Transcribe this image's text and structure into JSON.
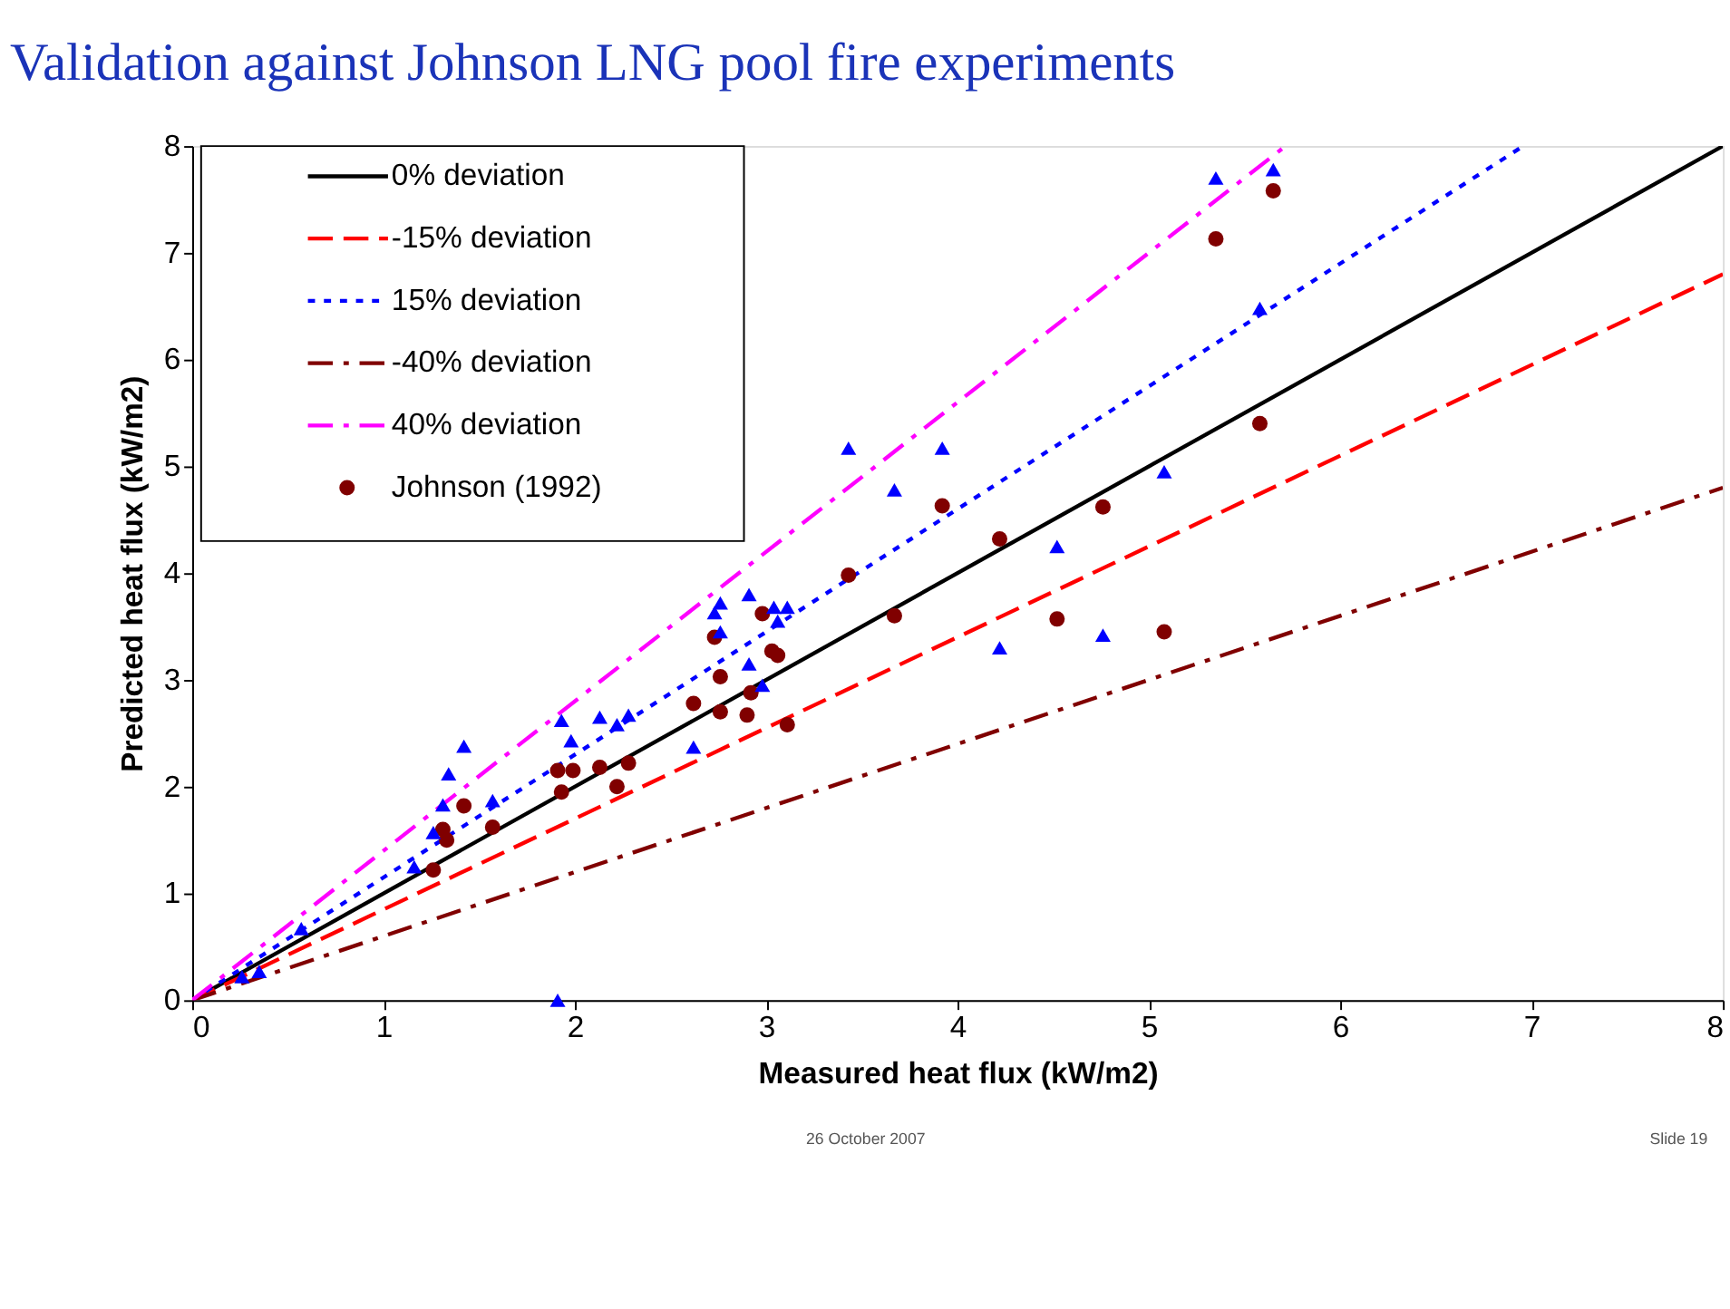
{
  "chart_data": {
    "type": "scatter",
    "title": "Validation against Johnson LNG pool fire experiments",
    "xlabel": "Measured heat flux (kW/m2)",
    "ylabel": "Predicted heat flux (kW/m2)",
    "xlim": [
      0,
      8
    ],
    "ylim": [
      0,
      8
    ],
    "xticks": [
      0,
      1,
      2,
      3,
      4,
      5,
      6,
      7,
      8
    ],
    "yticks": [
      0,
      1,
      2,
      3,
      4,
      5,
      6,
      7,
      8
    ],
    "grid": false,
    "legend": "top left",
    "annotations": [
      "26 October 2007",
      "Slide 19"
    ],
    "series": [
      {
        "name": "0% deviation",
        "type": "line",
        "color": "#000000",
        "line_style": "solid",
        "marker": "none",
        "x": [
          0,
          8
        ],
        "values": [
          0,
          8
        ]
      },
      {
        "name": "-15% deviation",
        "type": "line",
        "color": "#ff0000",
        "line_style": "dashed",
        "marker": "none",
        "x": [
          0,
          8
        ],
        "values": [
          0,
          6.8
        ]
      },
      {
        "name": "15% deviation",
        "type": "line",
        "color": "#0000ff",
        "line_style": "dotted",
        "marker": "none",
        "x": [
          0,
          6.957
        ],
        "values": [
          0,
          8
        ]
      },
      {
        "name": "-40% deviation",
        "type": "line",
        "color": "#800000",
        "line_style": "dashdot",
        "marker": "none",
        "x": [
          0,
          8
        ],
        "values": [
          0,
          4.8
        ]
      },
      {
        "name": "40% deviation",
        "type": "line",
        "color": "#ff00ff",
        "line_style": "dashdot",
        "marker": "none",
        "x": [
          0,
          5.714
        ],
        "values": [
          0,
          8
        ]
      },
      {
        "name": "Johnson (1992)",
        "color": "#800000",
        "marker": "circle",
        "x": [
          1.26,
          1.31,
          1.33,
          1.42,
          1.57,
          1.91,
          1.93,
          1.99,
          2.13,
          2.22,
          2.28,
          2.62,
          2.73,
          2.76,
          2.76,
          2.9,
          2.92,
          2.98,
          3.03,
          3.06,
          3.11,
          3.43,
          3.67,
          3.92,
          4.22,
          4.52,
          4.76,
          5.08,
          5.35,
          5.58,
          5.65
        ],
        "values": [
          1.22,
          1.6,
          1.5,
          1.82,
          1.62,
          2.15,
          1.95,
          2.15,
          2.18,
          2.0,
          2.22,
          2.78,
          3.4,
          3.03,
          2.7,
          2.67,
          2.88,
          3.62,
          3.27,
          3.23,
          2.58,
          3.98,
          3.6,
          4.63,
          4.32,
          3.57,
          4.62,
          3.45,
          7.13,
          5.4,
          7.58
        ]
      },
      {
        "color": "#0000ff",
        "marker": "triangle",
        "x": [
          0.26,
          0.35,
          0.57,
          1.16,
          1.26,
          1.31,
          1.34,
          1.42,
          1.57,
          1.91,
          1.93,
          1.98,
          2.13,
          2.22,
          2.28,
          2.62,
          2.73,
          2.76,
          2.76,
          2.91,
          2.91,
          2.98,
          3.04,
          3.06,
          3.11,
          3.43,
          3.67,
          3.92,
          4.22,
          4.52,
          4.76,
          5.08,
          5.35,
          5.58,
          5.65
        ],
        "values": [
          0.22,
          0.27,
          0.67,
          1.25,
          1.57,
          1.83,
          2.12,
          2.38,
          1.87,
          0.0,
          2.62,
          2.43,
          2.65,
          2.58,
          2.67,
          2.37,
          3.63,
          3.45,
          3.72,
          3.8,
          3.15,
          2.95,
          3.68,
          3.55,
          3.68,
          5.17,
          4.78,
          5.17,
          3.3,
          4.25,
          3.42,
          4.95,
          7.7,
          6.48,
          7.78
        ]
      }
    ]
  }
}
